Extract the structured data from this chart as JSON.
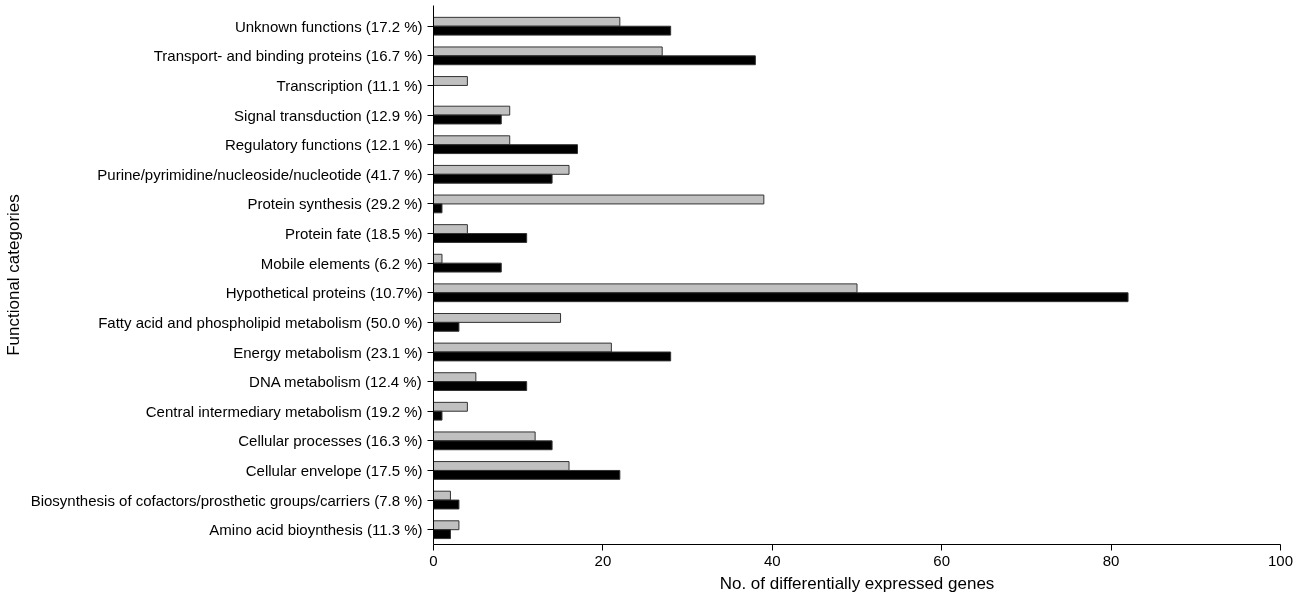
{
  "chart_data": {
    "type": "bar",
    "orientation": "horizontal",
    "xlabel": "No. of differentially expressed genes",
    "ylabel": "Functional categories",
    "categories": [
      "Unknown functions (17.2 %)",
      "Transport- and binding proteins (16.7 %)",
      "Transcription (11.1 %)",
      "Signal transduction (12.9 %)",
      "Regulatory functions (12.1 %)",
      "Purine/pyrimidine/nucleoside/nucleotide (41.7 %)",
      "Protein synthesis (29.2 %)",
      "Protein fate (18.5 %)",
      "Mobile elements (6.2 %)",
      "Hypothetical proteins (10.7%)",
      "Fatty acid and phospholipid metabolism (50.0 %)",
      "Energy metabolism (23.1 %)",
      "DNA metabolism (12.4 %)",
      "Central intermediary metabolism (19.2 %)",
      "Cellular processes (16.3 %)",
      "Cellular envelope (17.5 %)",
      "Biosynthesis of cofactors/prosthetic groups/carriers (7.8 %)",
      "Amino acid bioynthesis (11.3 %)"
    ],
    "series": [
      {
        "color": "#c0c0c0",
        "values": [
          22,
          27,
          4,
          9,
          9,
          16,
          39,
          4,
          1,
          50,
          15,
          21,
          5,
          4,
          12,
          16,
          2,
          3
        ]
      },
      {
        "color": "#000000",
        "values": [
          28,
          38,
          null,
          8,
          17,
          14,
          1,
          11,
          8,
          82,
          3,
          28,
          11,
          1,
          14,
          22,
          3,
          2
        ]
      }
    ],
    "xlim": [
      0,
      100
    ],
    "xticks": [
      0,
      20,
      40,
      60,
      80,
      100
    ],
    "grid": false
  }
}
